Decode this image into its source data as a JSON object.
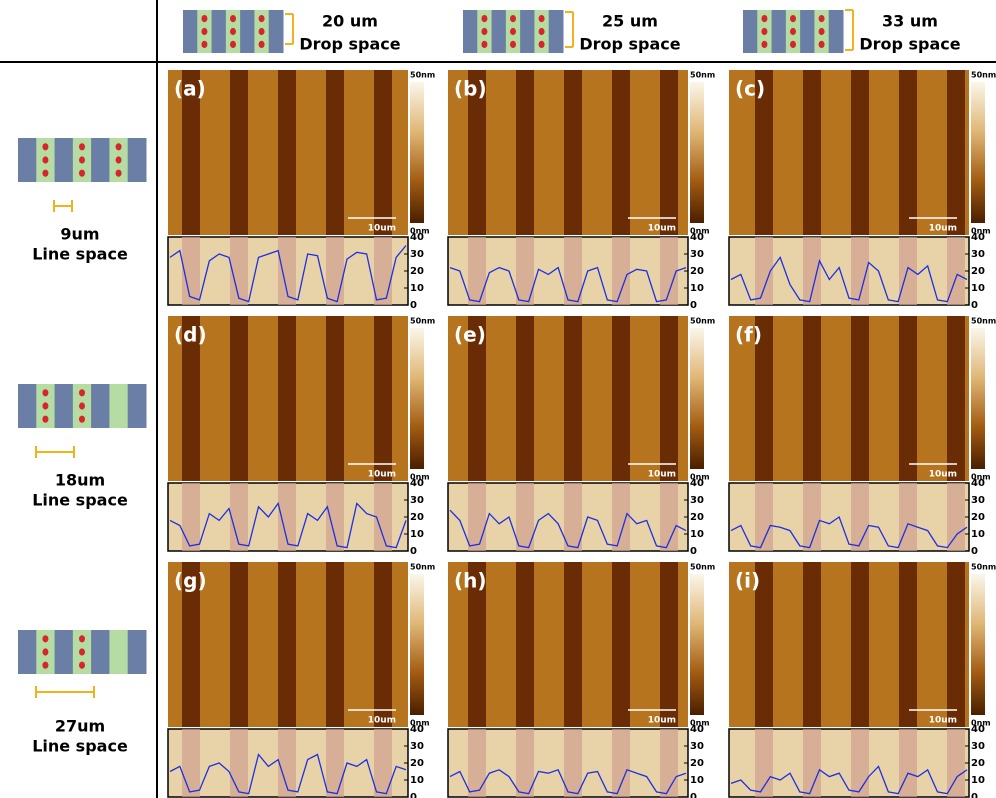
{
  "columns": [
    {
      "space": "20 um",
      "label": "Drop space"
    },
    {
      "space": "25 um",
      "label": "Drop space"
    },
    {
      "space": "33 um",
      "label": "Drop space"
    }
  ],
  "rows": [
    {
      "space": "9um",
      "label": "Line space"
    },
    {
      "space": "18um",
      "label": "Line space"
    },
    {
      "space": "27um",
      "label": "Line space"
    }
  ],
  "colorbar_max": "50nm",
  "colorbar_min": "0nm",
  "scale_bar": "10um",
  "profile_ylim": [
    0,
    40
  ],
  "profile_ticks": [
    0,
    10,
    20,
    30,
    40
  ],
  "panels": [
    {
      "label": "(a)",
      "profile": [
        28,
        32,
        5,
        3,
        26,
        30,
        28,
        4,
        2,
        28,
        30,
        32,
        5,
        3,
        30,
        29,
        4,
        2,
        27,
        31,
        30,
        3,
        4,
        28,
        35
      ]
    },
    {
      "label": "(b)",
      "profile": [
        22,
        20,
        3,
        2,
        19,
        22,
        20,
        3,
        2,
        21,
        18,
        22,
        3,
        2,
        20,
        22,
        3,
        2,
        18,
        21,
        20,
        2,
        3,
        20,
        22
      ]
    },
    {
      "label": "(c)",
      "profile": [
        15,
        18,
        3,
        4,
        20,
        28,
        12,
        3,
        2,
        26,
        15,
        22,
        4,
        3,
        25,
        20,
        3,
        2,
        22,
        18,
        23,
        3,
        2,
        18,
        15
      ]
    },
    {
      "label": "(d)",
      "profile": [
        18,
        15,
        3,
        4,
        22,
        18,
        25,
        4,
        3,
        26,
        20,
        28,
        4,
        3,
        22,
        18,
        26,
        3,
        2,
        28,
        22,
        20,
        3,
        2,
        18
      ]
    },
    {
      "label": "(e)",
      "profile": [
        24,
        18,
        3,
        4,
        22,
        16,
        20,
        3,
        2,
        18,
        22,
        16,
        3,
        2,
        20,
        18,
        4,
        3,
        22,
        16,
        18,
        3,
        2,
        15,
        12
      ]
    },
    {
      "label": "(f)",
      "profile": [
        12,
        15,
        3,
        2,
        15,
        14,
        12,
        3,
        2,
        18,
        16,
        20,
        4,
        3,
        15,
        14,
        3,
        2,
        16,
        14,
        12,
        3,
        2,
        10,
        14
      ]
    },
    {
      "label": "(g)",
      "profile": [
        15,
        18,
        3,
        4,
        18,
        20,
        15,
        3,
        2,
        25,
        18,
        22,
        4,
        3,
        22,
        25,
        3,
        2,
        20,
        18,
        22,
        3,
        2,
        18,
        16
      ]
    },
    {
      "label": "(h)",
      "profile": [
        12,
        15,
        3,
        4,
        14,
        16,
        12,
        3,
        2,
        15,
        14,
        16,
        3,
        2,
        14,
        15,
        3,
        2,
        16,
        14,
        12,
        3,
        2,
        12,
        14
      ]
    },
    {
      "label": "(i)",
      "profile": [
        8,
        10,
        4,
        3,
        12,
        10,
        14,
        3,
        2,
        16,
        12,
        14,
        4,
        3,
        12,
        18,
        3,
        2,
        14,
        12,
        16,
        3,
        2,
        12,
        16
      ]
    }
  ]
}
